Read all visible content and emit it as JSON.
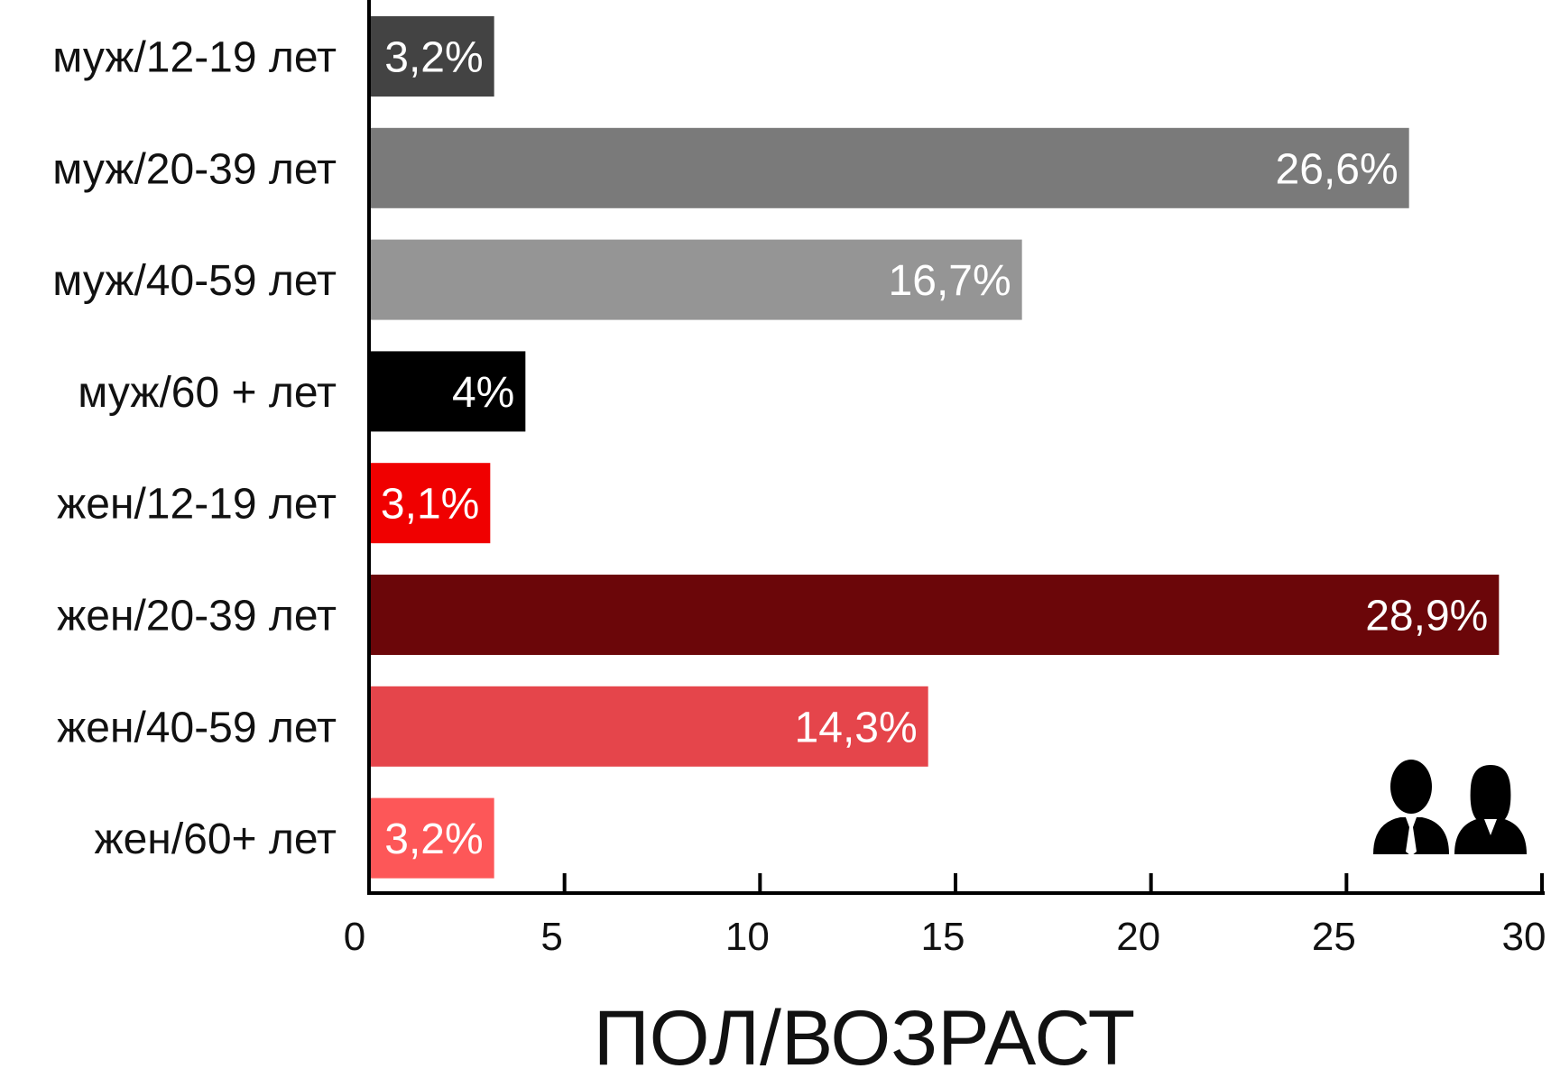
{
  "chart_data": {
    "type": "bar",
    "orientation": "horizontal",
    "title": "",
    "xlabel": "ПОЛ/ВОЗРАСТ",
    "ylabel": "",
    "xlim": [
      0,
      30
    ],
    "xticks": [
      "0",
      "5",
      "10",
      "15",
      "20",
      "25",
      "30"
    ],
    "grid": false,
    "categories": [
      "муж/12-19 лет",
      "муж/20-39 лет",
      "муж/40-59 лет",
      "муж/60 + лет",
      "жен/12-19 лет",
      "жен/20-39 лет",
      "жен/40-59 лет",
      "жен/60+ лет"
    ],
    "values": [
      3.2,
      26.6,
      16.7,
      4,
      3.1,
      28.9,
      14.3,
      3.2
    ],
    "value_labels": [
      "3,2%",
      "26,6%",
      "16,7%",
      "4%",
      "3,1%",
      "28,9%",
      "14,3%",
      "3,2%"
    ],
    "colors": [
      "#434343",
      "#7a7a7a",
      "#959595",
      "#000000",
      "#f00000",
      "#6b0609",
      "#e5454b",
      "#fd5758"
    ],
    "icons": [
      "businessman-icon",
      "businesswoman-icon"
    ]
  }
}
